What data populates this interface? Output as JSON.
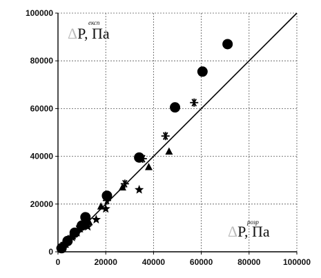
{
  "chart_data": {
    "type": "scatter",
    "title": "",
    "xlabel": "",
    "ylabel": "",
    "xlim": [
      0,
      100000
    ],
    "ylim": [
      0,
      100000
    ],
    "x_ticks": [
      "0",
      "20000",
      "40000",
      "60000",
      "80000",
      "100000"
    ],
    "y_ticks": [
      "0",
      "20000",
      "40000",
      "60000",
      "80000",
      "100000"
    ],
    "grid": true,
    "legend": "none",
    "annotations": [
      {
        "symbol": "Δ",
        "main": "P",
        "sup": "експ",
        "suffix": ", Па",
        "anchor": "top-left"
      },
      {
        "symbol": "Δ",
        "main": "P",
        "sup": "розр",
        "suffix": ", Па",
        "anchor": "bottom-right"
      }
    ],
    "fit_line": {
      "from": [
        0,
        0
      ],
      "to": [
        100000,
        100000
      ]
    },
    "series": [
      {
        "marker": "circle",
        "points": [
          [
            1500,
            1500
          ],
          [
            4000,
            4500
          ],
          [
            7000,
            8000
          ],
          [
            10000,
            11000
          ],
          [
            11500,
            14500
          ],
          [
            20500,
            23500
          ],
          [
            34000,
            39500
          ],
          [
            49000,
            60500
          ],
          [
            60500,
            75500
          ],
          [
            71000,
            87000
          ]
        ]
      },
      {
        "marker": "triangle",
        "points": [
          [
            3000,
            3000
          ],
          [
            6000,
            6500
          ],
          [
            9000,
            9500
          ],
          [
            13000,
            12500
          ],
          [
            18000,
            19000
          ],
          [
            27000,
            27000
          ],
          [
            38000,
            35500
          ],
          [
            46500,
            42000
          ]
        ]
      },
      {
        "marker": "asterisk",
        "points": [
          [
            2000,
            2500
          ],
          [
            5000,
            5500
          ],
          [
            8500,
            9500
          ],
          [
            12000,
            12500
          ],
          [
            20500,
            21500
          ],
          [
            28000,
            28500
          ],
          [
            35500,
            39000
          ],
          [
            45000,
            48500
          ],
          [
            57000,
            62500
          ]
        ]
      },
      {
        "marker": "star",
        "points": [
          [
            1000,
            1000
          ],
          [
            3000,
            3500
          ],
          [
            6000,
            6000
          ],
          [
            8000,
            8000
          ],
          [
            12500,
            10500
          ],
          [
            16000,
            13500
          ],
          [
            20000,
            18000
          ],
          [
            34000,
            26000
          ]
        ]
      }
    ]
  }
}
